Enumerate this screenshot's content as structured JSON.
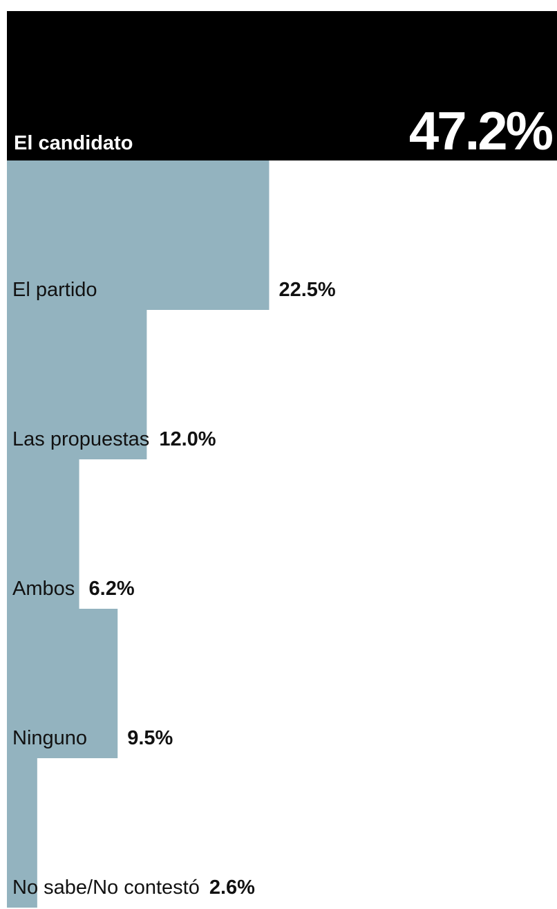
{
  "chart_data": {
    "type": "bar",
    "categories": [
      "El candidato",
      "El partido",
      "Las propuestas",
      "Ambos",
      "Ninguno",
      "No sabe/No contestó"
    ],
    "values": [
      47.2,
      22.5,
      12.0,
      6.2,
      9.5,
      2.6
    ],
    "value_labels": [
      "47.2%",
      "22.5%",
      "12.0%",
      "6.2%",
      "9.5%",
      "2.6%"
    ],
    "colors": [
      "#000000",
      "#93b3bf",
      "#93b3bf",
      "#93b3bf",
      "#93b3bf",
      "#93b3bf"
    ]
  }
}
